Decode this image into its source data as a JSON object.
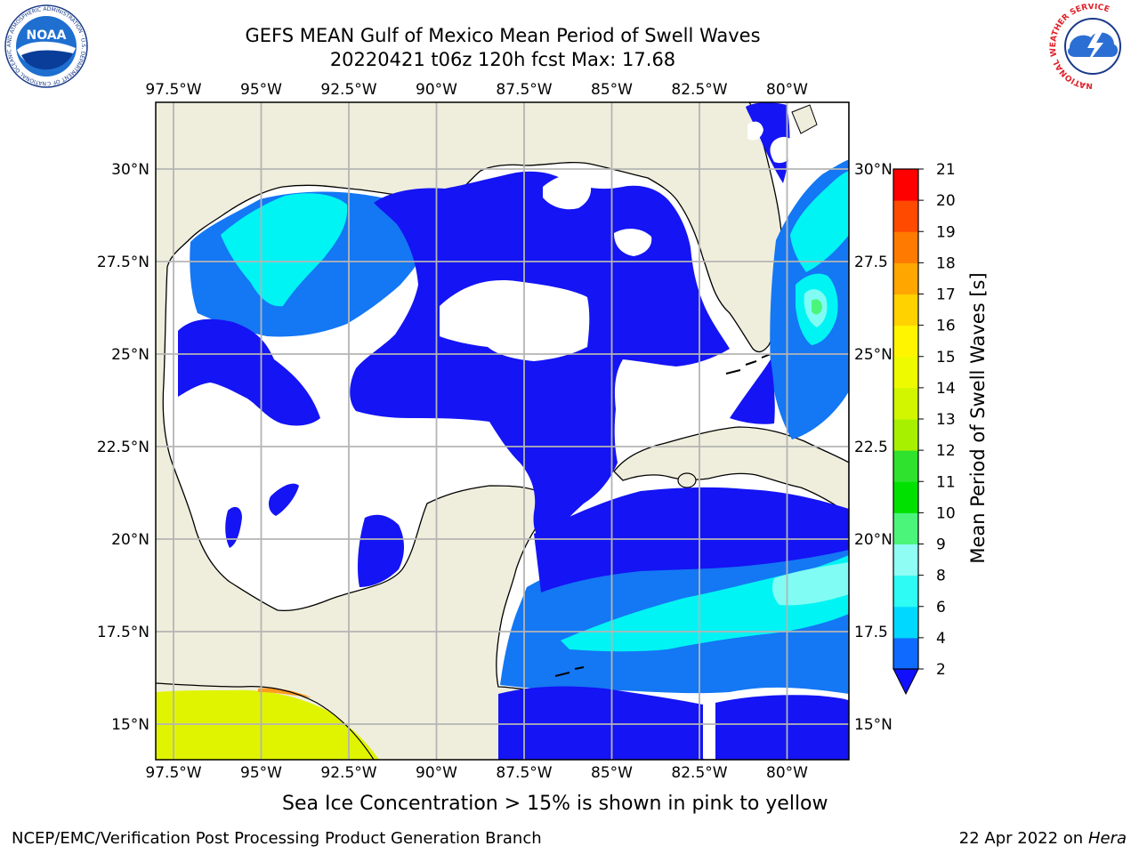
{
  "title": "GEFS MEAN Gulf of Mexico Mean Period of Swell Waves",
  "subtitle": "20220421 t06z 120h fcst   Max: 17.68",
  "lon_ticks": [
    "97.5°W",
    "95°W",
    "92.5°W",
    "90°W",
    "87.5°W",
    "85°W",
    "82.5°W",
    "80°W"
  ],
  "lat_ticks_left": [
    "30°N",
    "27.5°N",
    "25°N",
    "22.5°N",
    "20°N",
    "17.5°N",
    "15°N"
  ],
  "lat_ticks_right": [
    "30°N",
    "27.5",
    "25°N",
    "22.5",
    "20°N",
    "17.5",
    "15°N"
  ],
  "colorbar": {
    "label": "Mean Period of Swell Waves [s]",
    "ticks": [
      "2",
      "4",
      "6",
      "8",
      "9",
      "10",
      "11",
      "12",
      "13",
      "14",
      "15",
      "16",
      "17",
      "18",
      "19",
      "20",
      "21"
    ],
    "colors": [
      "#0f6aff",
      "#00d8ff",
      "#2efbf4",
      "#8ffdf4",
      "#4bf57a",
      "#00e100",
      "#2ee22e",
      "#a7f000",
      "#d2f600",
      "#eefb00",
      "#fff500",
      "#ffd200",
      "#ffa600",
      "#ff7a00",
      "#ff4a00",
      "#ff0000"
    ],
    "extend_color": "#1010ff"
  },
  "colors": {
    "land": "#efeedc",
    "ocean_low": "#ffffff",
    "blue": "#1414f4",
    "mid_blue": "#1477f4",
    "cyan": "#00f4f4",
    "light_cyan": "#80fcf4",
    "ice_yellow": "#e0f400",
    "ice_orange": "#ff9c20",
    "grid": "#b4b4b4"
  },
  "caption": "Sea Ice Concentration > 15% is shown in pink to yellow",
  "credit": "NCEP/EMC/Verification Post Processing Product Generation Branch",
  "date": "22 Apr 2022 on",
  "host": "Hera",
  "logos": {
    "noaa": "NOAA",
    "noaa_ring": "NATIONAL OCEANIC AND ATMOSPHERIC ADMINISTRATION · U.S. DEPARTMENT OF COMMERCE",
    "nws_ring": "NATIONAL WEATHER SERVICE"
  }
}
